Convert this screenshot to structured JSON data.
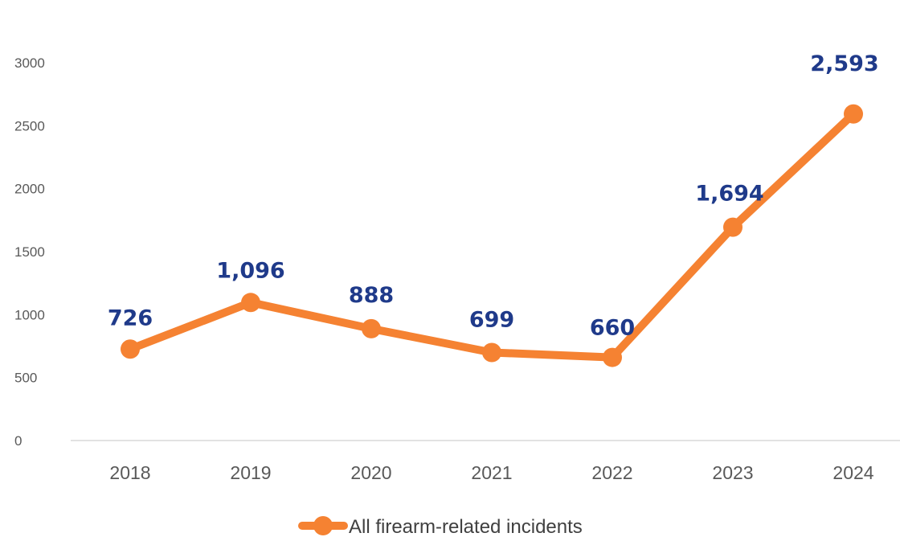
{
  "chart_data": {
    "type": "line",
    "categories": [
      "2018",
      "2019",
      "2020",
      "2021",
      "2022",
      "2023",
      "2024"
    ],
    "series": [
      {
        "name": "All firearm-related incidents",
        "values": [
          726,
          1096,
          888,
          699,
          660,
          1694,
          2593
        ],
        "labels": [
          "726",
          "1,096",
          "888",
          "699",
          "660",
          "1,694",
          "2,593"
        ],
        "color": "#F58232"
      }
    ],
    "yticks": [
      "0",
      "500",
      "1000",
      "1500",
      "2000",
      "2500",
      "3000"
    ],
    "ylim": [
      0,
      3000
    ],
    "data_label_color": "#1F3A8A",
    "axis_color": "#D9D9D9",
    "tick_color": "#595959",
    "grid": false,
    "legend": "bottom",
    "title": "",
    "xlabel": "",
    "ylabel": ""
  }
}
